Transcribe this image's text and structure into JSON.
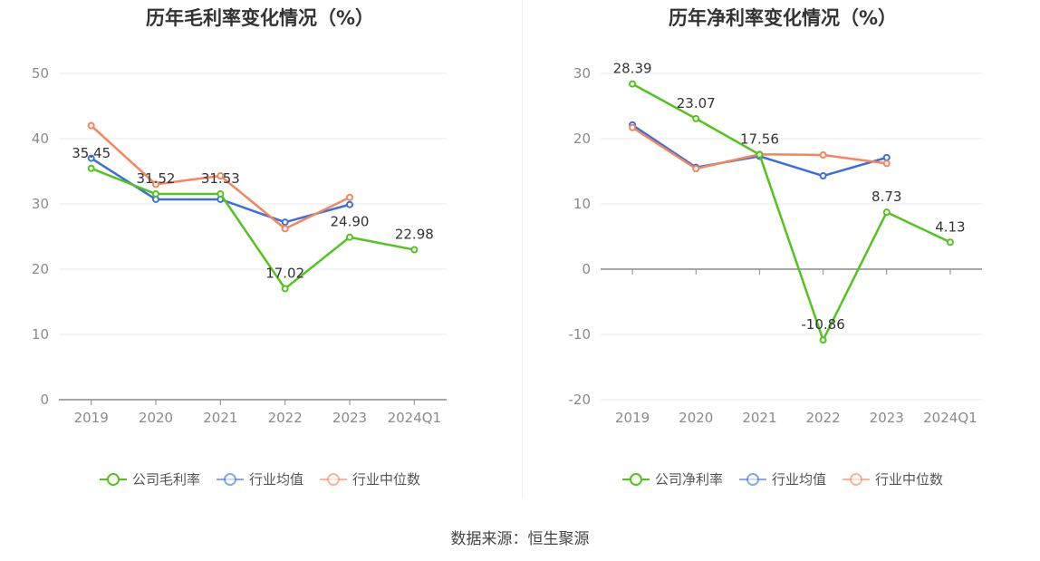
{
  "chart_data": [
    {
      "type": "line",
      "title": "历年毛利率变化情况（%）",
      "categories": [
        "2019",
        "2020",
        "2021",
        "2022",
        "2023",
        "2024Q1"
      ],
      "ylim": [
        0,
        50
      ],
      "yticks": [
        0,
        10,
        20,
        30,
        40,
        50
      ],
      "grid": true,
      "legend_position": "bottom",
      "series": [
        {
          "name": "公司毛利率",
          "color": "#52c41a",
          "values": [
            35.45,
            31.52,
            31.53,
            17.02,
            24.9,
            22.98
          ],
          "labels": [
            "35.45",
            "31.52",
            "31.53",
            "17.02",
            "24.90",
            "22.98"
          ]
        },
        {
          "name": "行业均值",
          "color": "#3b6fe0",
          "values": [
            37.0,
            30.7,
            30.7,
            27.2,
            29.9,
            null
          ]
        },
        {
          "name": "行业中位数",
          "color": "#f5855b",
          "values": [
            42.0,
            33.0,
            34.3,
            26.2,
            31.0,
            null
          ]
        }
      ]
    },
    {
      "type": "line",
      "title": "历年净利率变化情况（%）",
      "categories": [
        "2019",
        "2020",
        "2021",
        "2022",
        "2023",
        "2024Q1"
      ],
      "ylim": [
        -20,
        30
      ],
      "yticks": [
        -20,
        -10,
        0,
        10,
        20,
        30
      ],
      "grid": true,
      "legend_position": "bottom",
      "series": [
        {
          "name": "公司净利率",
          "color": "#52c41a",
          "values": [
            28.39,
            23.07,
            17.56,
            -10.86,
            8.73,
            4.13
          ],
          "labels": [
            "28.39",
            "23.07",
            "17.56",
            "-10.86",
            "8.73",
            "4.13"
          ]
        },
        {
          "name": "行业均值",
          "color": "#3b6fe0",
          "values": [
            22.1,
            15.6,
            17.3,
            14.3,
            17.1,
            null
          ]
        },
        {
          "name": "行业中位数",
          "color": "#f5855b",
          "values": [
            21.7,
            15.4,
            17.6,
            17.5,
            16.2,
            null
          ]
        }
      ]
    }
  ],
  "source": "数据来源：恒生聚源"
}
